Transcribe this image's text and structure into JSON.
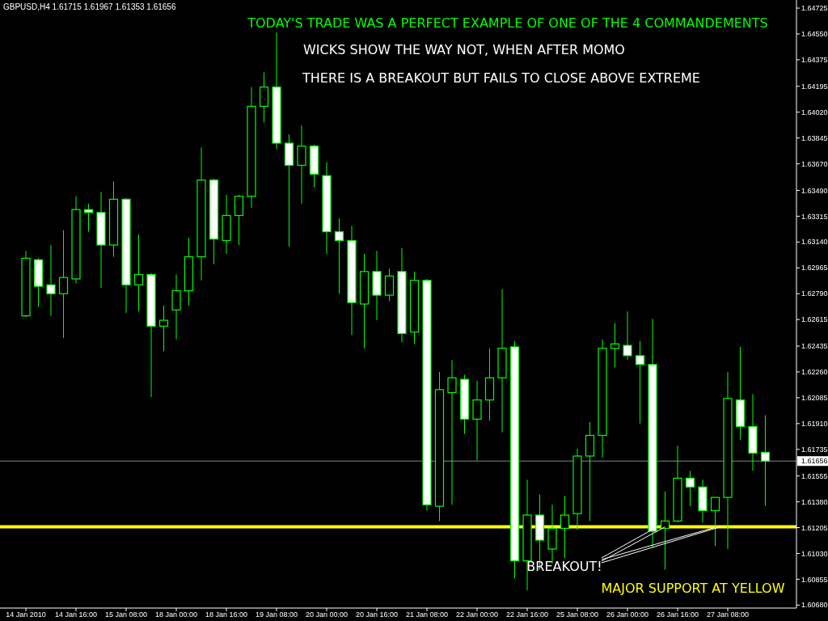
{
  "chart_data": {
    "type": "candlestick",
    "title": "GBPUSD,H4 1.61715 1.61967 1.61353 1.61656",
    "annotations": [
      "TODAY'S TRADE WAS A PERFECT EXAMPLE OF ONE OF THE 4 COMMANDEMENTS",
      "WICKS SHOW THE WAY NOT, WHEN AFTER MOMO",
      "THERE IS A BREAKOUT BUT FAILS TO CLOSE ABOVE EXTREME",
      {
        "text": "BREAKOUT!",
        "y": 1.6121
      },
      "MAJOR SUPPORT AT YELLOW"
    ],
    "color": "#00ff00",
    "categories": [
      "14 Jan 2010",
      null,
      null,
      null,
      "14 Jan 16:00",
      null,
      null,
      null,
      "15 Jan 08:00",
      null,
      null,
      null,
      "18 Jan 00:00",
      null,
      null,
      null,
      "18 Jan 16:00",
      null,
      null,
      null,
      "19 Jan 08:00",
      null,
      null,
      null,
      "20 Jan 00:00",
      null,
      null,
      null,
      "20 Jan 16:00",
      null,
      null,
      null,
      "21 Jan 08:00",
      null,
      null,
      null,
      "22 Jan 00:00",
      null,
      null,
      null,
      "22 Jan 16:00",
      null,
      null,
      null,
      "25 Jan 08:00",
      null,
      null,
      null,
      "26 Jan 00:00",
      null,
      null,
      null,
      "26 Jan 16:00",
      null,
      null,
      null,
      "27 Jan 08:00",
      null,
      null,
      null
    ],
    "ohlc": [
      [
        1.6264,
        1.6308,
        1.6263,
        1.6303
      ],
      [
        1.6302,
        1.6303,
        1.627,
        1.6284
      ],
      [
        1.6285,
        1.6312,
        1.6264,
        1.6279
      ],
      [
        1.6279,
        1.6322,
        1.6249,
        1.629
      ],
      [
        1.6289,
        1.6345,
        1.6286,
        1.6336
      ],
      [
        1.6336,
        1.634,
        1.6321,
        1.6334
      ],
      [
        1.6334,
        1.6348,
        1.6283,
        1.6312
      ],
      [
        1.6312,
        1.6355,
        1.6304,
        1.6343
      ],
      [
        1.6343,
        1.6344,
        1.6266,
        1.6285
      ],
      [
        1.6285,
        1.6319,
        1.6267,
        1.6292
      ],
      [
        1.6292,
        1.6293,
        1.6209,
        1.6257
      ],
      [
        1.6257,
        1.6271,
        1.624,
        1.6261
      ],
      [
        1.6268,
        1.6292,
        1.6248,
        1.6281
      ],
      [
        1.6281,
        1.6317,
        1.6271,
        1.6304
      ],
      [
        1.6304,
        1.6378,
        1.6288,
        1.6356
      ],
      [
        1.6356,
        1.6357,
        1.6299,
        1.6316
      ],
      [
        1.6315,
        1.6346,
        1.6306,
        1.6332
      ],
      [
        1.6332,
        1.6346,
        1.6312,
        1.6345
      ],
      [
        1.6345,
        1.6419,
        1.6337,
        1.6406
      ],
      [
        1.6406,
        1.6429,
        1.6395,
        1.6419
      ],
      [
        1.6419,
        1.6456,
        1.6377,
        1.6381
      ],
      [
        1.6381,
        1.6387,
        1.6311,
        1.6366
      ],
      [
        1.6366,
        1.6393,
        1.634,
        1.6379
      ],
      [
        1.6379,
        1.638,
        1.6351,
        1.636
      ],
      [
        1.6359,
        1.6368,
        1.6306,
        1.6321
      ],
      [
        1.6321,
        1.633,
        1.6279,
        1.6315
      ],
      [
        1.6315,
        1.6325,
        1.6251,
        1.6273
      ],
      [
        1.6272,
        1.6306,
        1.6242,
        1.6294
      ],
      [
        1.6294,
        1.6308,
        1.6261,
        1.6278
      ],
      [
        1.6278,
        1.6296,
        1.6274,
        1.6291
      ],
      [
        1.6294,
        1.631,
        1.6246,
        1.6252
      ],
      [
        1.6253,
        1.6294,
        1.6245,
        1.6288
      ],
      [
        1.6288,
        1.6289,
        1.6132,
        1.6136
      ],
      [
        1.6135,
        1.6226,
        1.6125,
        1.6214
      ],
      [
        1.6212,
        1.6234,
        1.6136,
        1.6222
      ],
      [
        1.6221,
        1.6224,
        1.6184,
        1.6194
      ],
      [
        1.6194,
        1.622,
        1.6166,
        1.6207
      ],
      [
        1.6207,
        1.6242,
        1.6193,
        1.6222
      ],
      [
        1.6222,
        1.6282,
        1.6185,
        1.6242
      ],
      [
        1.6243,
        1.6247,
        1.6086,
        1.6098
      ],
      [
        1.6098,
        1.6153,
        1.6078,
        1.6129
      ],
      [
        1.6129,
        1.6143,
        1.6092,
        1.6112
      ],
      [
        1.6106,
        1.6136,
        1.6096,
        1.612
      ],
      [
        1.612,
        1.6142,
        1.61,
        1.6129
      ],
      [
        1.613,
        1.6174,
        1.6119,
        1.6169
      ],
      [
        1.6169,
        1.6192,
        1.6125,
        1.6183
      ],
      [
        1.6183,
        1.6248,
        1.6168,
        1.6242
      ],
      [
        1.6242,
        1.6259,
        1.6229,
        1.6245
      ],
      [
        1.6244,
        1.6267,
        1.6234,
        1.6237
      ],
      [
        1.6237,
        1.6247,
        1.6191,
        1.6231
      ],
      [
        1.6231,
        1.6262,
        1.6107,
        1.6118
      ],
      [
        1.612,
        1.6145,
        1.6092,
        1.6125
      ],
      [
        1.6125,
        1.6176,
        1.6124,
        1.6154
      ],
      [
        1.6154,
        1.6159,
        1.6135,
        1.6148
      ],
      [
        1.6148,
        1.6153,
        1.6124,
        1.6132
      ],
      [
        1.6132,
        1.6141,
        1.6108,
        1.6141
      ],
      [
        1.6141,
        1.6226,
        1.6106,
        1.6208
      ],
      [
        1.6207,
        1.6243,
        1.618,
        1.6189
      ],
      [
        1.6189,
        1.6211,
        1.6159,
        1.6171
      ],
      [
        1.61715,
        1.61967,
        1.61353,
        1.61656
      ]
    ],
    "ylim": [
      1.6066,
      1.6478
    ],
    "yticks": [
      {
        "value": 1.64725,
        "label": "1.64725"
      },
      {
        "value": 1.6455,
        "label": "1.64550"
      },
      {
        "value": 1.64375,
        "label": "1.64375"
      },
      {
        "value": 1.64195,
        "label": "1.64195"
      },
      {
        "value": 1.6402,
        "label": "1.64020"
      },
      {
        "value": 1.63845,
        "label": "1.63845"
      },
      {
        "value": 1.6367,
        "label": "1.63670"
      },
      {
        "value": 1.6349,
        "label": "1.63490"
      },
      {
        "value": 1.63315,
        "label": "1.63315"
      },
      {
        "value": 1.6314,
        "label": "1.63140"
      },
      {
        "value": 1.62965,
        "label": "1.62965"
      },
      {
        "value": 1.6279,
        "label": "1.62790"
      },
      {
        "value": 1.62615,
        "label": "1.62615"
      },
      {
        "value": 1.62435,
        "label": "1.62435"
      },
      {
        "value": 1.6226,
        "label": "1.62260"
      },
      {
        "value": 1.62085,
        "label": "1.62085"
      },
      {
        "value": 1.6191,
        "label": "1.61910"
      },
      {
        "value": 1.61735,
        "label": "1.61735"
      },
      {
        "value": 1.61555,
        "label": "1.61555"
      },
      {
        "value": 1.6138,
        "label": "1.61380"
      },
      {
        "value": 1.61205,
        "label": "1.61205"
      },
      {
        "value": 1.6103,
        "label": "1.61030"
      },
      {
        "value": 1.60855,
        "label": "1.60855"
      },
      {
        "value": 1.6068,
        "label": "1.60680"
      }
    ],
    "ref_lines": [
      {
        "axis": "y",
        "value": 1.61656,
        "label": "1.61656",
        "color": "#778899"
      },
      {
        "axis": "y",
        "value": 1.6121,
        "color": "#ffff00"
      }
    ]
  }
}
